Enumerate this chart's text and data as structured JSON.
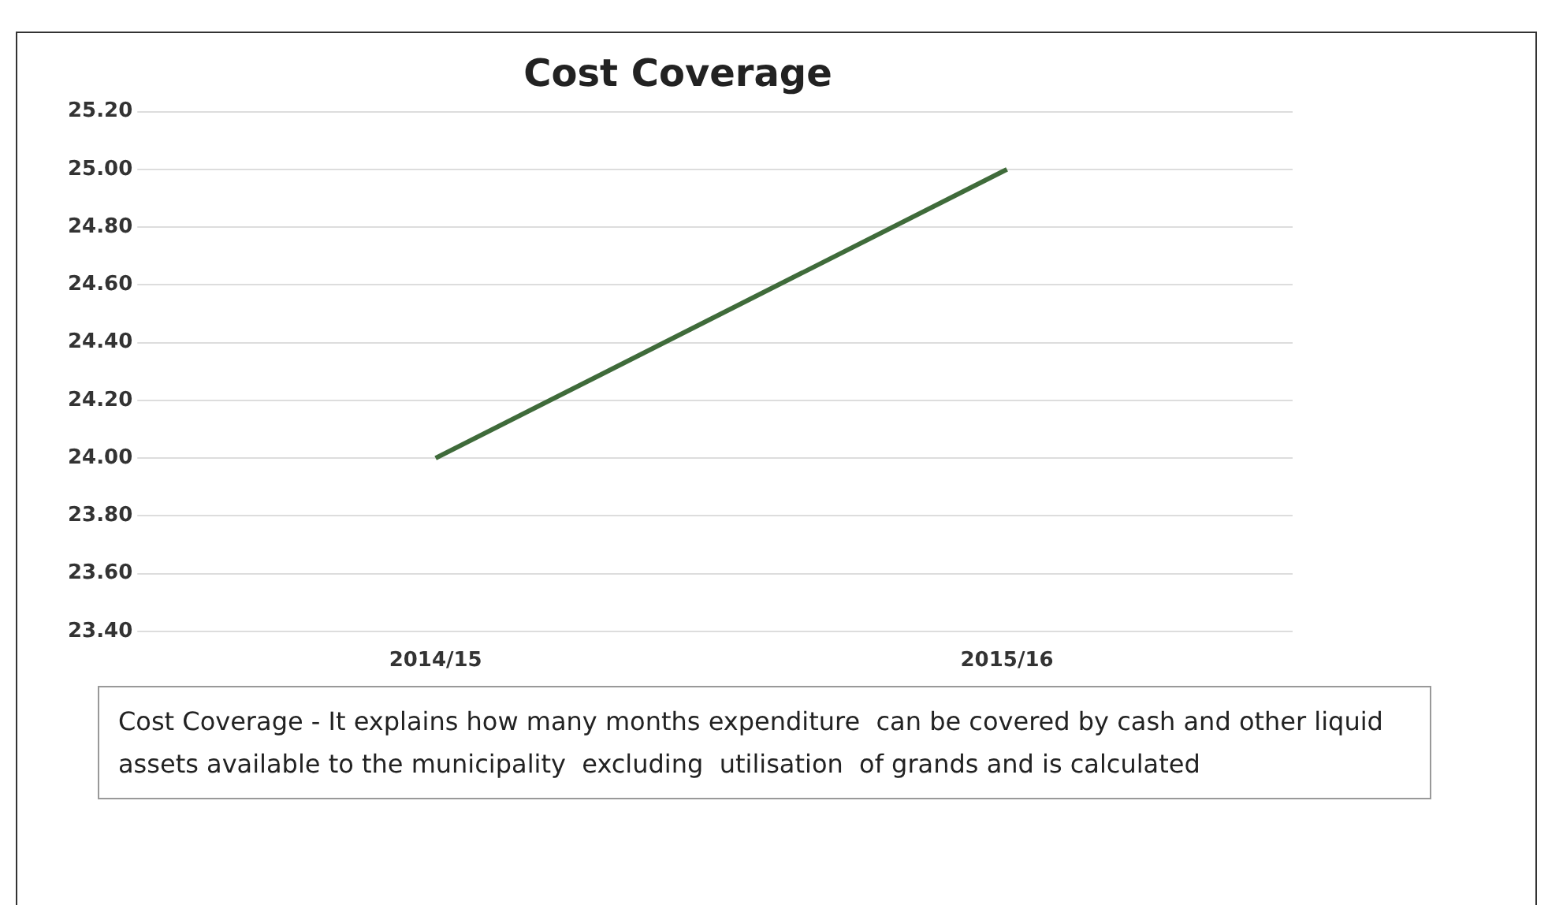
{
  "chart_data": {
    "type": "line",
    "title": "Cost Coverage",
    "categories": [
      "2014/15",
      "2015/16"
    ],
    "series": [
      {
        "color": "#3f6b3a",
        "values": [
          24.0,
          25.0
        ]
      }
    ],
    "ylim": [
      23.4,
      25.2
    ],
    "yticks": [
      {
        "value": 23.4,
        "label": "23.40"
      },
      {
        "value": 23.6,
        "label": "23.60"
      },
      {
        "value": 23.8,
        "label": "23.80"
      },
      {
        "value": 24.0,
        "label": "24.00"
      },
      {
        "value": 24.2,
        "label": "24.20"
      },
      {
        "value": 24.4,
        "label": "24.40"
      },
      {
        "value": 24.6,
        "label": "24.60"
      },
      {
        "value": 24.8,
        "label": "24.80"
      },
      {
        "value": 25.0,
        "label": "25.00"
      },
      {
        "value": 25.2,
        "label": "25.20"
      }
    ],
    "grid": "y",
    "legend": false,
    "marker": "none",
    "line_style": "solid",
    "annotations": [
      "Cost Coverage - It explains how many months expenditure  can be covered by cash and other liquid assets available to the municipality  excluding  utilisation  of grands and is calculated"
    ]
  }
}
